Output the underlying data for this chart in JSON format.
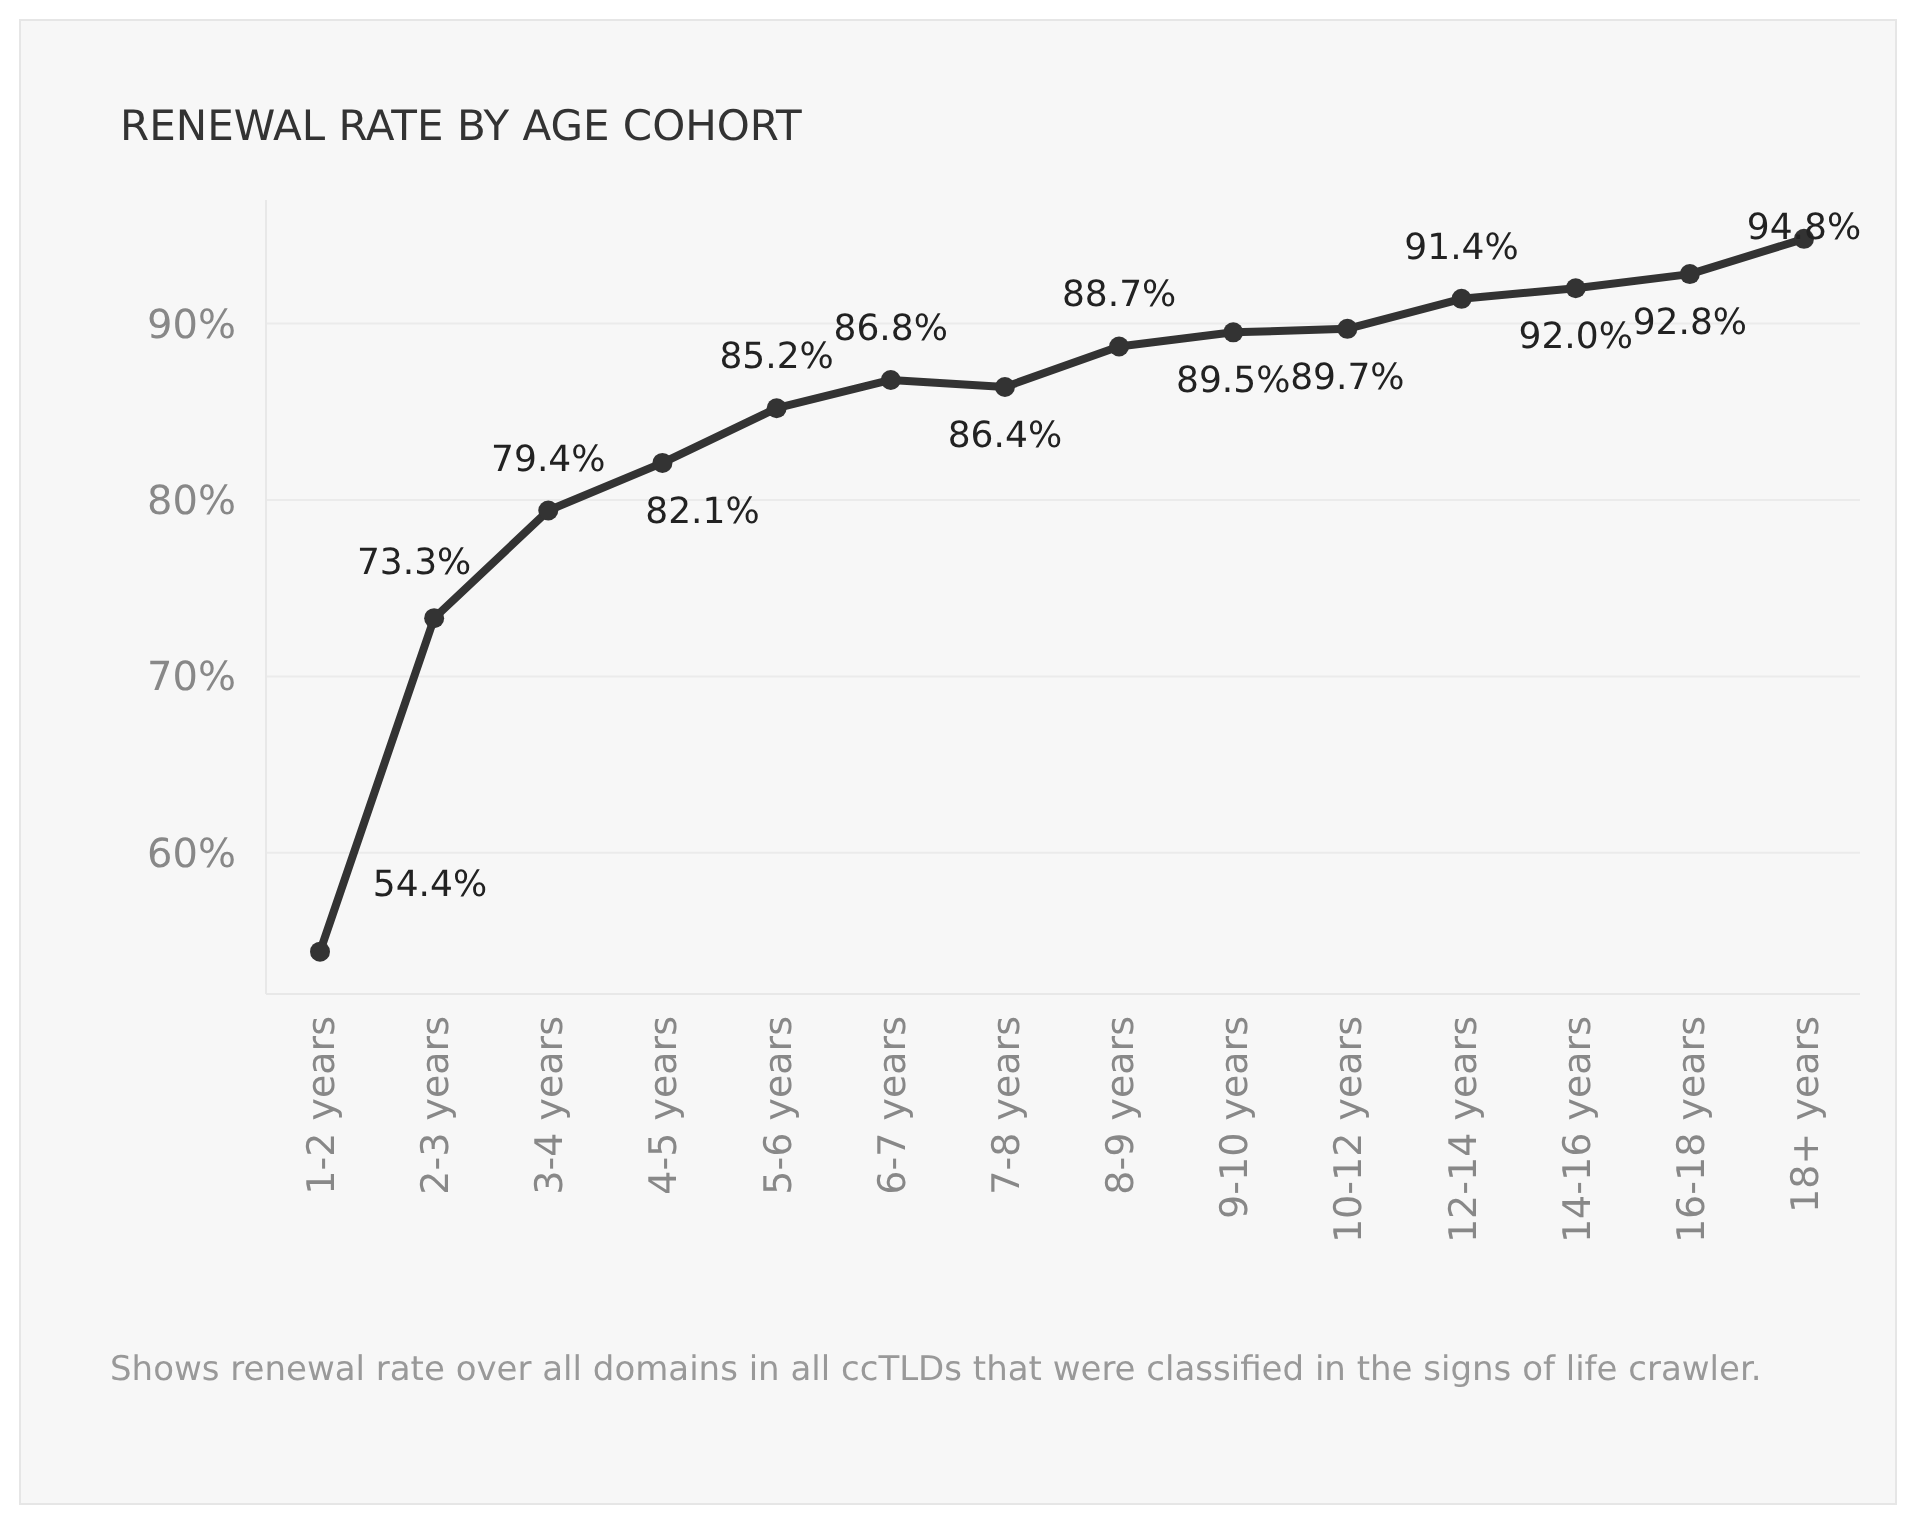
{
  "chart_data": {
    "type": "line",
    "title": "RENEWAL RATE BY AGE COHORT",
    "categories": [
      "1-2 years",
      "2-3 years",
      "3-4 years",
      "4-5 years",
      "5-6 years",
      "6-7 years",
      "7-8 years",
      "8-9 years",
      "9-10 years",
      "10-12 years",
      "12-14 years",
      "14-16 years",
      "16-18 years",
      "18+ years"
    ],
    "series": [
      {
        "color": "#333333",
        "values": [
          54.4,
          73.3,
          79.4,
          82.1,
          85.2,
          86.8,
          86.4,
          88.7,
          89.5,
          89.7,
          91.4,
          92.0,
          92.8,
          94.8
        ],
        "value_labels": [
          "54.4%",
          "73.3%",
          "79.4%",
          "82.1%",
          "85.2%",
          "86.8%",
          "86.4%",
          "88.7%",
          "89.5%",
          "89.7%",
          "91.4%",
          "92.0%",
          "92.8%",
          "94.8%"
        ]
      }
    ],
    "ylim": [
      52,
      97
    ],
    "yticks": [
      {
        "value": 60,
        "label": "60%"
      },
      {
        "value": 70,
        "label": "70%"
      },
      {
        "value": 80,
        "label": "80%"
      },
      {
        "value": 90,
        "label": "90%"
      }
    ],
    "grid": "y",
    "marker": "circle",
    "line_style": "solid",
    "annotations": [
      "Shows renewal rate over all domains in all ccTLDs that were classified in the signs of life crawler."
    ]
  }
}
